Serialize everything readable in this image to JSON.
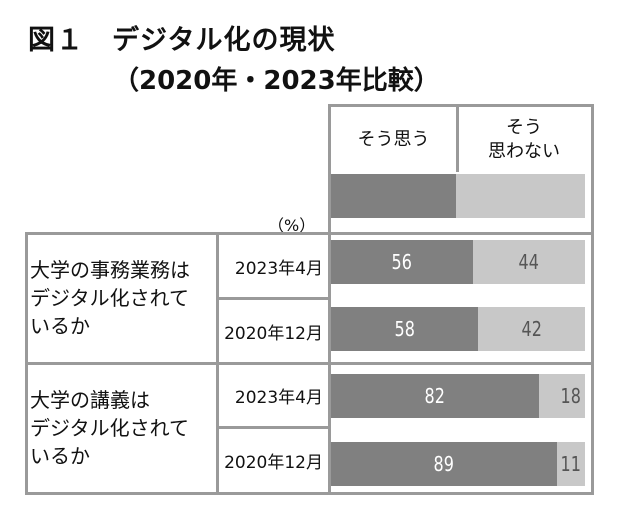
{
  "title": "図１　デジタル化の現状",
  "subtitle": "（2020年・2023年比較）",
  "chart_data": {
    "type": "bar",
    "stacked": true,
    "orientation": "horizontal",
    "unit": "（%）",
    "legend": [
      "そう思う",
      "そう\n思わない"
    ],
    "colors": {
      "agree": "#808080",
      "disagree": "#c8c8c8"
    },
    "groups": [
      {
        "label": "大学の事務業務は\nデジタル化されて\nいるか",
        "rows": [
          {
            "date": "2023年4月",
            "agree": 56,
            "disagree": 44
          },
          {
            "date": "2020年12月",
            "agree": 58,
            "disagree": 42
          }
        ]
      },
      {
        "label": "大学の講義は\nデジタル化されて\nいるか",
        "rows": [
          {
            "date": "2023年4月",
            "agree": 82,
            "disagree": 18
          },
          {
            "date": "2020年12月",
            "agree": 89,
            "disagree": 11
          }
        ]
      }
    ]
  }
}
